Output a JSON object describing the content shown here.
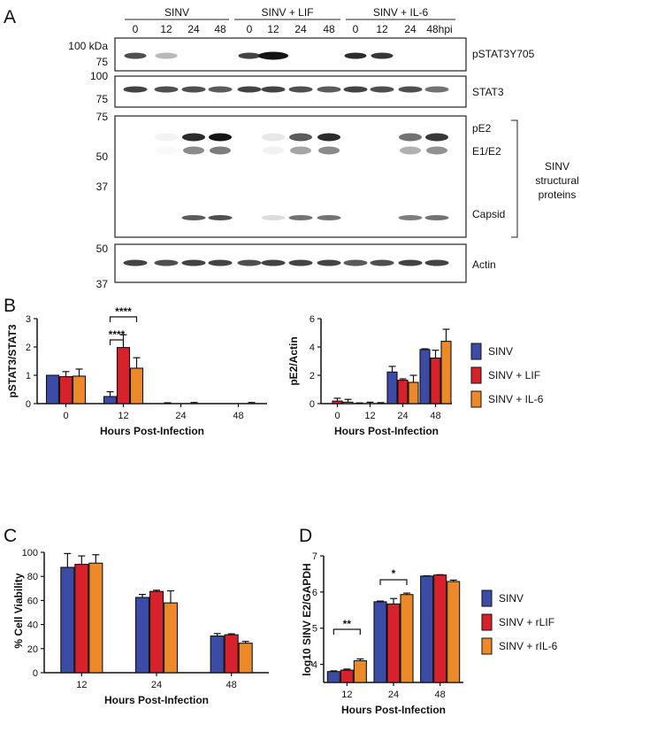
{
  "colors": {
    "SINV": "#3b4ba6",
    "SINV + LIF": "#d7212b",
    "SINV + IL-6": "#ec8a2a",
    "SINV + rLIF": "#d7212b",
    "SINV + rIL-6": "#ec8a2a"
  },
  "panelA": {
    "label": "A",
    "groups": [
      "SINV",
      "SINV + LIF",
      "SINV + IL-6"
    ],
    "timepoints": [
      "0",
      "12",
      "24",
      "48",
      "0",
      "12",
      "24",
      "48",
      "0",
      "12",
      "24",
      "48hpi"
    ],
    "blots": [
      {
        "name": "pSTAT3Y705",
        "markers": [
          "100 kDa",
          "75"
        ],
        "intensity": [
          0.75,
          0.3,
          0,
          0,
          0.8,
          1.0,
          0,
          0,
          0.9,
          0.85,
          0,
          0
        ]
      },
      {
        "name": "STAT3",
        "markers": [
          "100",
          "75"
        ],
        "intensity": [
          0.8,
          0.75,
          0.75,
          0.7,
          0.8,
          0.8,
          0.75,
          0.7,
          0.8,
          0.75,
          0.75,
          0.6
        ]
      },
      {
        "name": "structural",
        "markers": [
          "75",
          "50",
          "37"
        ],
        "band_labels": [
          "pE2",
          "E1/E2",
          "Capsid"
        ],
        "bracket_label": [
          "SINV",
          "structural",
          "proteins"
        ],
        "pE2": [
          0,
          0.05,
          0.9,
          1.0,
          0,
          0.1,
          0.7,
          0.9,
          0,
          0,
          0.6,
          0.85
        ],
        "capsid": [
          0,
          0,
          0.7,
          0.75,
          0,
          0.15,
          0.6,
          0.6,
          0,
          0,
          0.55,
          0.6
        ]
      },
      {
        "name": "Actin",
        "markers": [
          "50",
          "37"
        ],
        "intensity": [
          0.8,
          0.75,
          0.8,
          0.8,
          0.75,
          0.8,
          0.8,
          0.8,
          0.7,
          0.75,
          0.8,
          0.8
        ]
      }
    ]
  },
  "panelB_label": "B",
  "panelC_label": "C",
  "panelD_label": "D",
  "legend1": [
    "SINV",
    "SINV + LIF",
    "SINV + IL-6"
  ],
  "legend2": [
    "SINV",
    "SINV + rLIF",
    "SINV + rIL-6"
  ],
  "chart_data": [
    {
      "id": "B1",
      "type": "bar",
      "ylabel": "pSTAT3/STAT3",
      "xlabel": "Hours Post-Infection",
      "categories": [
        "0",
        "12",
        "24",
        "48"
      ],
      "ylim": [
        0,
        3
      ],
      "yticks": [
        "0",
        "1",
        "2",
        "3"
      ],
      "series": [
        {
          "name": "SINV",
          "values": [
            1.0,
            0.25,
            0.01,
            0.0
          ],
          "errors": [
            0,
            0.17,
            0.02,
            0.0
          ]
        },
        {
          "name": "SINV + LIF",
          "values": [
            0.95,
            1.98,
            0.0,
            0.0
          ],
          "errors": [
            0.18,
            0.45,
            0.0,
            0.0
          ]
        },
        {
          "name": "SINV + IL-6",
          "values": [
            0.97,
            1.25,
            0.01,
            0.01
          ],
          "errors": [
            0.25,
            0.37,
            0.03,
            0.03
          ]
        }
      ],
      "annotations": [
        "****",
        "****"
      ]
    },
    {
      "id": "B2",
      "type": "bar",
      "ylabel": "pE2/Actin",
      "xlabel": "Hours Post-Infection",
      "categories": [
        "0",
        "12",
        "24",
        "48"
      ],
      "ylim": [
        0,
        6
      ],
      "yticks": [
        "0",
        "2",
        "4",
        "6"
      ],
      "series": [
        {
          "name": "SINV",
          "values": [
            0.0,
            0.0,
            2.23,
            3.82
          ],
          "errors": [
            0,
            0.05,
            0.4,
            0.05
          ]
        },
        {
          "name": "SINV + LIF",
          "values": [
            0.18,
            0.02,
            1.65,
            3.22
          ],
          "errors": [
            0.2,
            0.08,
            0.1,
            0.55
          ]
        },
        {
          "name": "SINV + IL-6",
          "values": [
            0.1,
            0.02,
            1.5,
            4.4
          ],
          "errors": [
            0.2,
            0.05,
            0.5,
            0.85
          ]
        }
      ]
    },
    {
      "id": "C",
      "type": "bar",
      "ylabel": "% Cell Viability",
      "xlabel": "Hours Post-Infection",
      "categories": [
        "12",
        "24",
        "48"
      ],
      "ylim": [
        0,
        100
      ],
      "yticks": [
        "0",
        "20",
        "40",
        "60",
        "80",
        "100"
      ],
      "series": [
        {
          "name": "SINV",
          "values": [
            87.5,
            62.5,
            30.5
          ],
          "errors": [
            11.5,
            2.5,
            2
          ]
        },
        {
          "name": "SINV + rLIF",
          "values": [
            90,
            67.5,
            31.5
          ],
          "errors": [
            7,
            1,
            0.8
          ]
        },
        {
          "name": "SINV + rIL-6",
          "values": [
            91,
            58,
            24.5
          ],
          "errors": [
            7,
            10,
            1.5
          ]
        }
      ]
    },
    {
      "id": "D",
      "type": "bar",
      "ylabel": "log10 SINV E2/GAPDH",
      "xlabel": "Hours Post-Infection",
      "categories": [
        "12",
        "24",
        "48"
      ],
      "ylim": [
        3.5,
        7
      ],
      "yticks": [
        "4",
        "5",
        "6",
        "7"
      ],
      "series": [
        {
          "name": "SINV",
          "values": [
            3.8,
            5.73,
            6.44
          ],
          "errors": [
            0.02,
            0.02,
            0.01
          ]
        },
        {
          "name": "SINV + rLIF",
          "values": [
            3.84,
            5.67,
            6.47
          ],
          "errors": [
            0.03,
            0.15,
            0.01
          ]
        },
        {
          "name": "SINV + rIL-6",
          "values": [
            4.1,
            5.93,
            6.29
          ],
          "errors": [
            0.05,
            0.04,
            0.04
          ]
        }
      ],
      "annotations": [
        "**",
        "*"
      ]
    }
  ]
}
